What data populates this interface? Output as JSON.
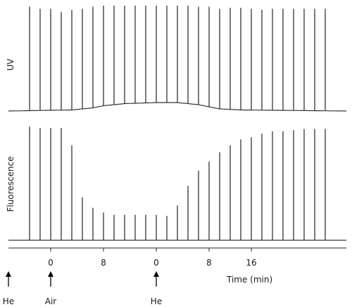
{
  "chart_data": [
    {
      "type": "line",
      "ylabel": "UV",
      "x_unit": "min",
      "peak_times": [
        -4,
        -2,
        0,
        2,
        4,
        6,
        8,
        10,
        12,
        14,
        16,
        18,
        20,
        22,
        24,
        26,
        28,
        30,
        32,
        34,
        36,
        38,
        40,
        42,
        44,
        46,
        48,
        50,
        52
      ],
      "peak_heights": [
        0.99,
        0.97,
        0.97,
        0.94,
        0.96,
        0.97,
        0.99,
        1.0,
        1.0,
        1.0,
        1.0,
        1.0,
        1.0,
        1.0,
        1.0,
        1.0,
        0.99,
        0.99,
        0.97,
        0.98,
        0.98,
        0.97,
        0.96,
        0.97,
        0.97,
        0.97,
        0.97,
        0.97,
        0.97
      ],
      "baseline": [
        [
          -8,
          0
        ],
        [
          4,
          0.01
        ],
        [
          8,
          0.03
        ],
        [
          10,
          0.05
        ],
        [
          14,
          0.07
        ],
        [
          20,
          0.08
        ],
        [
          24,
          0.08
        ],
        [
          28,
          0.06
        ],
        [
          32,
          0.02
        ],
        [
          36,
          0.01
        ],
        [
          56,
          0
        ]
      ]
    },
    {
      "type": "line",
      "ylabel": "Fluorescence",
      "xlabel": "Time (min)",
      "x_unit": "min",
      "peak_times": [
        -4,
        -2,
        0,
        2,
        4,
        6,
        8,
        10,
        12,
        14,
        16,
        18,
        20,
        22,
        24,
        26,
        28,
        30,
        32,
        34,
        36,
        38,
        40,
        42,
        44,
        46,
        48,
        50,
        52
      ],
      "peak_heights": [
        0.98,
        0.97,
        0.97,
        0.97,
        0.82,
        0.37,
        0.28,
        0.24,
        0.22,
        0.22,
        0.22,
        0.22,
        0.22,
        0.21,
        0.3,
        0.47,
        0.6,
        0.68,
        0.76,
        0.82,
        0.87,
        0.89,
        0.92,
        0.94,
        0.94,
        0.95,
        0.96,
        0.96,
        0.96
      ],
      "baseline": [
        [
          -8,
          0
        ],
        [
          56,
          0
        ]
      ]
    }
  ],
  "axis": {
    "ticks": [
      {
        "label": "0",
        "time": 0
      },
      {
        "label": "8",
        "time": 10
      },
      {
        "label": "0",
        "time": 20
      },
      {
        "label": "8",
        "time": 30
      },
      {
        "label": "16",
        "time": 38
      }
    ],
    "range": [
      -8,
      56
    ]
  },
  "events": [
    {
      "label": "He",
      "time": -8
    },
    {
      "label": "Air",
      "time": 0
    },
    {
      "label": "He",
      "time": 20
    }
  ]
}
